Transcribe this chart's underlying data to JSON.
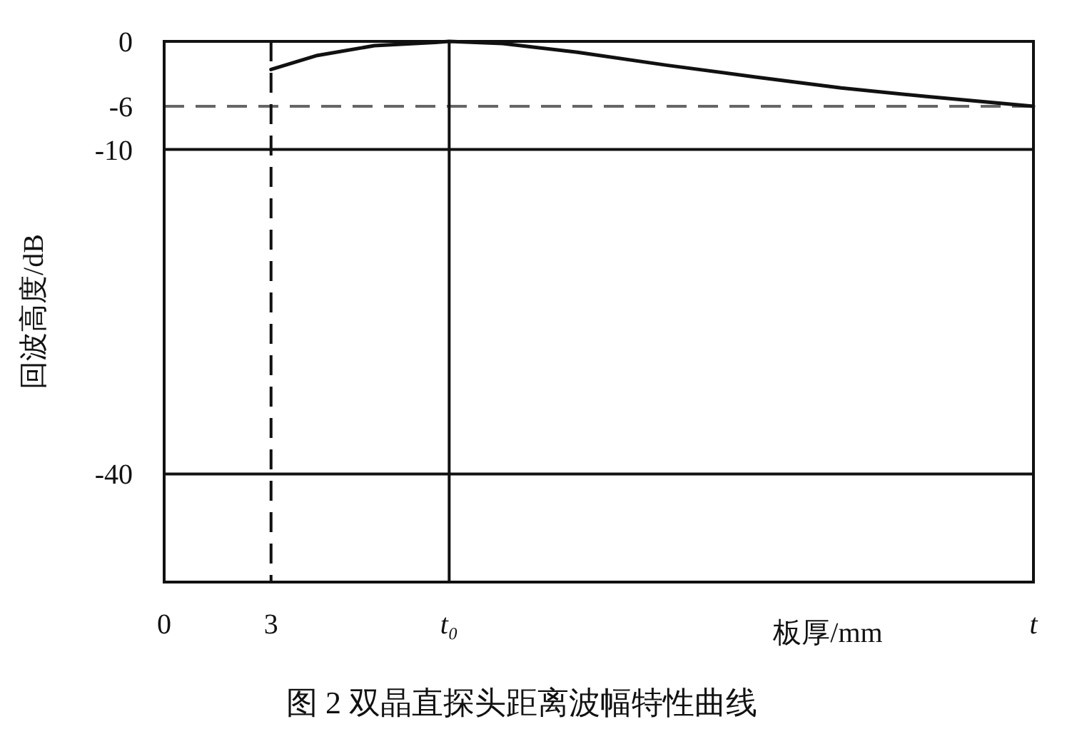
{
  "chart_data": {
    "type": "line",
    "xlabel": "板厚/mm",
    "ylabel": "回波高度/dB",
    "annotations": [
      "图 2 双晶直探头距离波幅特性曲线"
    ],
    "x": [
      3,
      4.3,
      5.9,
      7.6,
      8,
      9.5,
      11.6,
      14.1,
      16.6,
      19,
      21.4,
      24.4
    ],
    "series": [
      {
        "color": "#111111",
        "values": [
          -2.6,
          -1.3,
          -0.4,
          -0.1,
          0,
          -0.2,
          -1.0,
          -2.2,
          -3.3,
          -4.3,
          -5.1,
          -6
        ]
      }
    ],
    "xlim": [
      0,
      24.4
    ],
    "ylim": [
      -50,
      0
    ],
    "xticks": [
      0,
      3,
      {
        "value": 8,
        "label": "t₀"
      },
      {
        "value": 24.4,
        "label": "t"
      }
    ],
    "yticks": [
      0,
      -6,
      -10,
      -40
    ],
    "ref_lines": [
      {
        "axis": "y",
        "value": -6,
        "line_style": "dashed",
        "color": "#666666"
      },
      {
        "axis": "y",
        "value": -10,
        "line_style": "solid",
        "color": "#111111"
      },
      {
        "axis": "y",
        "value": -40,
        "line_style": "solid",
        "color": "#111111"
      },
      {
        "axis": "x",
        "value": 3,
        "line_style": "dashed",
        "color": "#111111"
      },
      {
        "axis": "x",
        "value": 8,
        "line_style": "solid",
        "color": "#111111"
      }
    ],
    "marker": "none",
    "line_style": "solid",
    "grid": false
  }
}
